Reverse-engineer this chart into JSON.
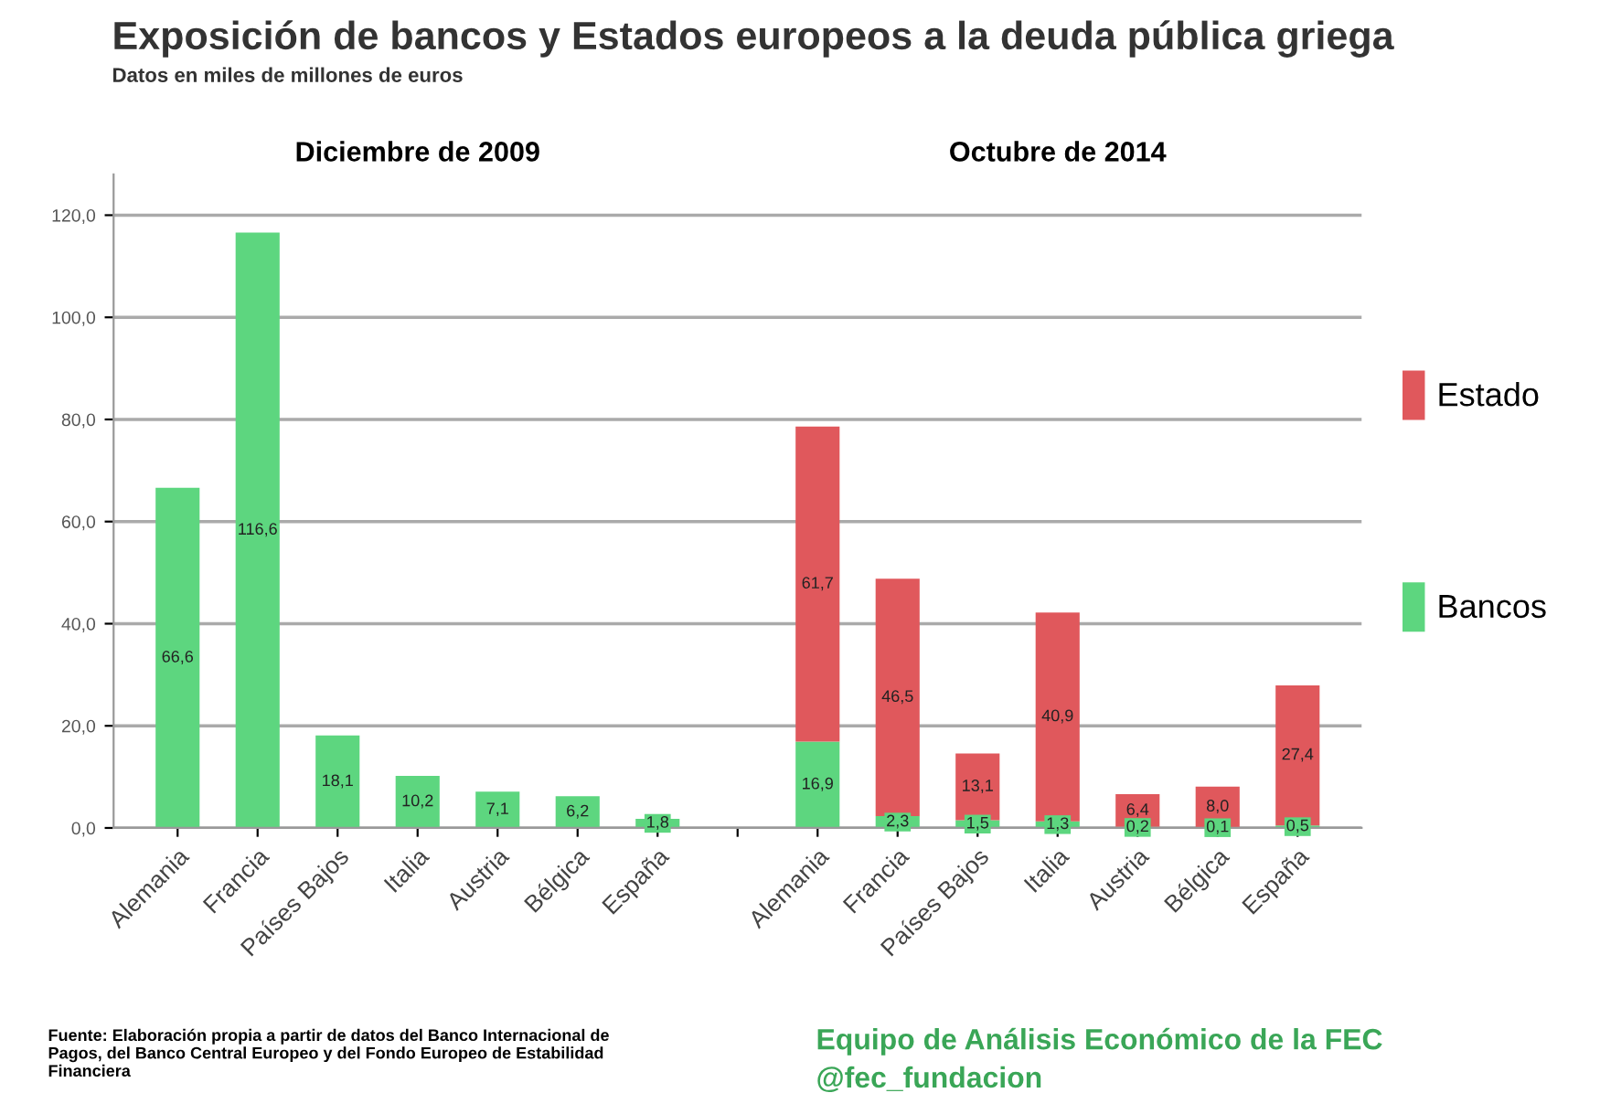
{
  "chart_data": {
    "type": "bar",
    "title": "Exposición de bancos y Estados europeos a la deuda pública griega",
    "subtitle": "Datos en miles de millones de euros",
    "categories": [
      "Alemania",
      "Francia",
      "Países Bajos",
      "Italia",
      "Austria",
      "Bélgica",
      "España",
      null,
      "Alemania",
      "Francia",
      "Países Bajos",
      "Italia",
      "Austria",
      "Bélgica",
      "España"
    ],
    "stacked": true,
    "series": [
      {
        "name": "Bancos",
        "color": "#5dd67f",
        "values": [
          66.6,
          116.6,
          18.1,
          10.2,
          7.1,
          6.2,
          1.8,
          null,
          16.9,
          2.3,
          1.5,
          1.3,
          0.2,
          0.1,
          0.5
        ],
        "value_labels": [
          "66,6",
          "116,6",
          "18,1",
          "10,2",
          "7,1",
          "6,2",
          "1,8",
          null,
          "16,9",
          "2,3",
          "1,5",
          "1,3",
          "0,2",
          "0,1",
          "0,5"
        ]
      },
      {
        "name": "Estado",
        "color": "#e0585c",
        "values": [
          null,
          null,
          null,
          null,
          null,
          null,
          null,
          null,
          61.7,
          46.5,
          13.1,
          40.9,
          6.4,
          8.0,
          27.4
        ],
        "value_labels": [
          null,
          null,
          null,
          null,
          null,
          null,
          null,
          null,
          "61,7",
          "46,5",
          "13,1",
          "40,9",
          "6,4",
          "8,0",
          "27,4"
        ]
      }
    ],
    "ylim": [
      0,
      128
    ],
    "yticks": [
      {
        "value": 0,
        "label": "0,0"
      },
      {
        "value": 20,
        "label": "20,0"
      },
      {
        "value": 40,
        "label": "40,0"
      },
      {
        "value": 60,
        "label": "60,0"
      },
      {
        "value": 80,
        "label": "80,0"
      },
      {
        "value": 100,
        "label": "100,0"
      },
      {
        "value": 120,
        "label": "120,0"
      }
    ],
    "grid": "y",
    "legend": "right",
    "annotations": [
      "Diciembre de 2009",
      "Octubre de 2014",
      "Fuente: Elaboración propia a partir de datos del Banco Internacional de Pagos, del Banco Central Europeo y del Fondo Europeo de Estabilidad Financiera",
      "Equipo de Análisis Económico de la FEC",
      "@fec_fundacion"
    ]
  }
}
